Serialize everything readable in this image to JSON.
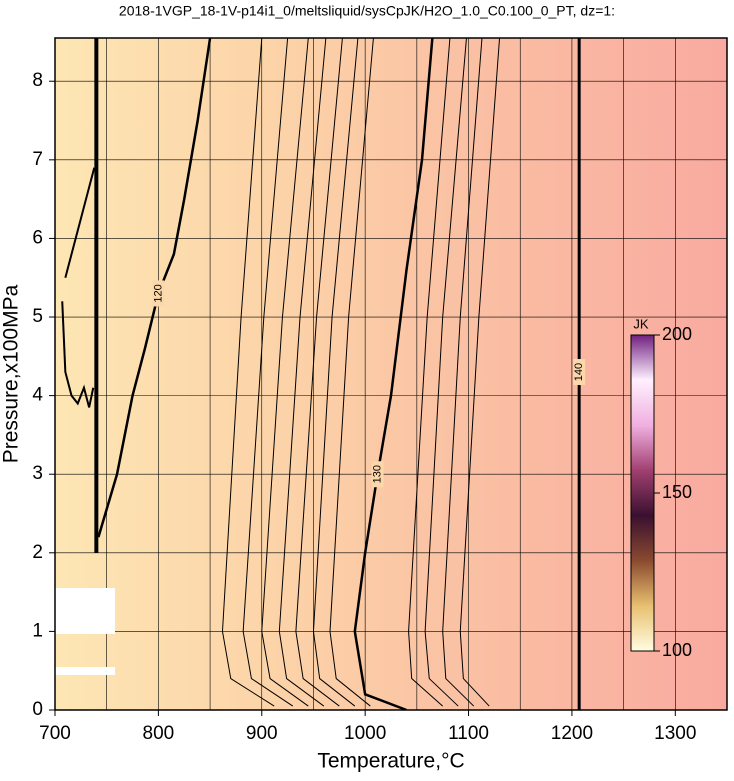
{
  "chart_data": {
    "type": "contour",
    "title": "2018-1VGP_18-1V-p14i1_0/meltsliquid/sysCpJK/H2O_1.0_C0.100_0_PT, dz=1:",
    "xlabel": "Temperature,°C",
    "ylabel": "Pressure,x100MPa",
    "xlim": [
      700,
      1350
    ],
    "ylim": [
      0,
      8.55
    ],
    "xticks": [
      700,
      800,
      900,
      1000,
      1100,
      1200,
      1300
    ],
    "xminor": [
      750,
      850,
      950,
      1050,
      1150,
      1250
    ],
    "yticks": [
      0,
      1,
      2,
      3,
      4,
      5,
      6,
      7,
      8
    ],
    "grid": true,
    "fill_colors": [
      "#fde6b4",
      "#fcd3a8",
      "#fabda3",
      "#f9aaa0"
    ],
    "contours": [
      {
        "level": 140,
        "width": 3,
        "x": [
          1207,
          1207,
          1207
        ],
        "y": [
          0,
          4.3,
          8.55
        ]
      },
      {
        "level": 130,
        "width": 2.5,
        "x": [
          1040,
          1000,
          990,
          1000,
          1012,
          1025,
          1040,
          1055,
          1065
        ],
        "y": [
          0,
          0.2,
          1,
          2,
          3,
          4,
          5.6,
          7,
          8.55
        ]
      },
      {
        "level": 120,
        "width": 2.5,
        "x": [
          742,
          760,
          775,
          787,
          800,
          815,
          825,
          838,
          850
        ],
        "y": [
          2.2,
          3,
          4,
          4.6,
          5.3,
          5.8,
          6.5,
          7.5,
          8.55
        ]
      },
      {
        "level": null,
        "width": 4,
        "x": [
          740,
          740
        ],
        "y": [
          2.0,
          8.55
        ]
      },
      {
        "level": null,
        "width": 2,
        "x": [
          707,
          710,
          716,
          722,
          728,
          733,
          737
        ],
        "y": [
          5.2,
          4.3,
          4.0,
          3.9,
          4.1,
          3.85,
          4.1
        ]
      },
      {
        "level": null,
        "width": 2,
        "x": [
          710,
          718,
          726,
          734,
          738
        ],
        "y": [
          5.5,
          5.9,
          6.3,
          6.7,
          6.9
        ]
      },
      {
        "level": null,
        "width": 1,
        "x": [
          912,
          870,
          862,
          880,
          900
        ],
        "y": [
          0.05,
          0.4,
          1,
          5,
          8.55
        ]
      },
      {
        "level": null,
        "width": 1,
        "x": [
          930,
          890,
          882,
          902,
          925
        ],
        "y": [
          0.05,
          0.4,
          1,
          5,
          8.55
        ]
      },
      {
        "level": null,
        "width": 1,
        "x": [
          945,
          908,
          900,
          920,
          945
        ],
        "y": [
          0.05,
          0.4,
          1,
          5,
          8.55
        ]
      },
      {
        "level": null,
        "width": 1,
        "x": [
          960,
          924,
          917,
          937,
          962
        ],
        "y": [
          0.05,
          0.4,
          1,
          5,
          8.55
        ]
      },
      {
        "level": null,
        "width": 1,
        "x": [
          975,
          940,
          933,
          953,
          978
        ],
        "y": [
          0.05,
          0.4,
          1,
          5,
          8.55
        ]
      },
      {
        "level": null,
        "width": 1,
        "x": [
          990,
          956,
          950,
          968,
          993
        ],
        "y": [
          0.05,
          0.4,
          1,
          5,
          8.55
        ]
      },
      {
        "level": null,
        "width": 1,
        "x": [
          1005,
          972,
          966,
          984,
          1008
        ],
        "y": [
          0.05,
          0.4,
          1,
          5,
          8.55
        ]
      },
      {
        "level": null,
        "width": 1,
        "x": [
          1075,
          1045,
          1042,
          1060,
          1082
        ],
        "y": [
          0.05,
          0.4,
          1,
          5,
          8.55
        ]
      },
      {
        "level": null,
        "width": 1,
        "x": [
          1090,
          1062,
          1058,
          1075,
          1098
        ],
        "y": [
          0.05,
          0.4,
          1,
          5,
          8.55
        ]
      },
      {
        "level": null,
        "width": 1,
        "x": [
          1105,
          1078,
          1075,
          1092,
          1113
        ],
        "y": [
          0.05,
          0.4,
          1,
          5,
          8.55
        ]
      },
      {
        "level": null,
        "width": 1,
        "x": [
          1120,
          1095,
          1092,
          1110,
          1130
        ],
        "y": [
          0.05,
          0.4,
          1,
          5,
          8.55
        ]
      }
    ],
    "colorbar": {
      "label": "JK",
      "lim": [
        100,
        200
      ],
      "ticks": [
        100,
        150,
        200
      ],
      "colors": [
        "#fffde0",
        "#e8c070",
        "#8a4a30",
        "#3a1030",
        "#a04070",
        "#f0b0e0",
        "#fff0ff",
        "#702080"
      ]
    }
  }
}
